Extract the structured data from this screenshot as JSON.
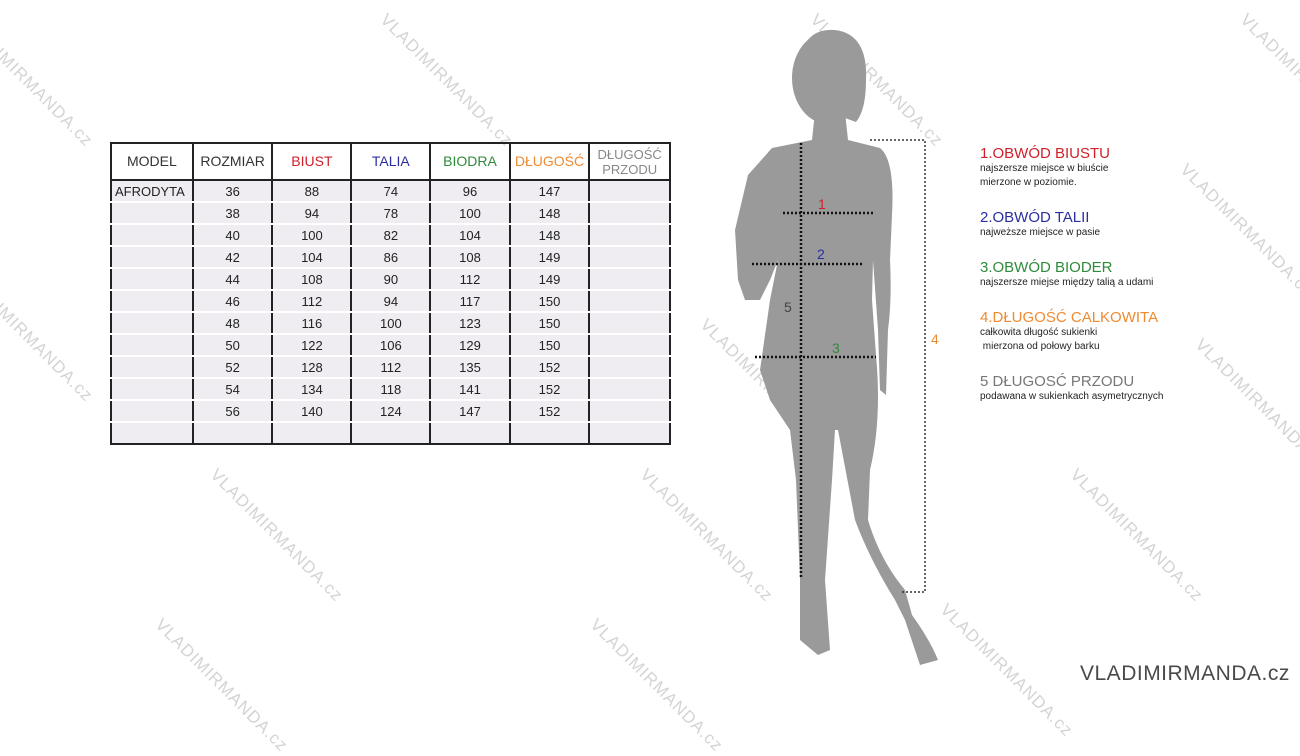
{
  "watermark": "VLADIMIRMANDA.cz",
  "table": {
    "headers": [
      {
        "label": "MODEL",
        "color": "#333333"
      },
      {
        "label": "ROZMIAR",
        "color": "#333333"
      },
      {
        "label": "BIUST",
        "color": "#d0202a"
      },
      {
        "label": "TALIA",
        "color": "#2b2f9e"
      },
      {
        "label": "BIODRA",
        "color": "#2e8b3a"
      },
      {
        "label": "DŁUGOŚĆ",
        "color": "#f08a30"
      },
      {
        "label": "DŁUGOŚĆ PRZODU",
        "color": "#888888"
      }
    ],
    "rows": [
      [
        "AFRODYTA",
        "36",
        "88",
        "74",
        "96",
        "147",
        ""
      ],
      [
        "",
        "38",
        "94",
        "78",
        "100",
        "148",
        ""
      ],
      [
        "",
        "40",
        "100",
        "82",
        "104",
        "148",
        ""
      ],
      [
        "",
        "42",
        "104",
        "86",
        "108",
        "149",
        ""
      ],
      [
        "",
        "44",
        "108",
        "90",
        "112",
        "149",
        ""
      ],
      [
        "",
        "46",
        "112",
        "94",
        "117",
        "150",
        ""
      ],
      [
        "",
        "48",
        "116",
        "100",
        "123",
        "150",
        ""
      ],
      [
        "",
        "50",
        "122",
        "106",
        "129",
        "150",
        ""
      ],
      [
        "",
        "52",
        "128",
        "112",
        "135",
        "152",
        ""
      ],
      [
        "",
        "54",
        "134",
        "118",
        "141",
        "152",
        ""
      ],
      [
        "",
        "56",
        "140",
        "124",
        "147",
        "152",
        ""
      ],
      [
        "",
        "",
        "",
        "",
        "",
        "",
        ""
      ]
    ]
  },
  "figure": {
    "markers": [
      {
        "label": "1",
        "color": "#d0202a"
      },
      {
        "label": "2",
        "color": "#2b2f9e"
      },
      {
        "label": "3",
        "color": "#2e8b3a"
      },
      {
        "label": "4",
        "color": "#f08a30"
      },
      {
        "label": "5",
        "color": "#444444"
      }
    ]
  },
  "legend": [
    {
      "title": "1.OBWÓD BIUSTU",
      "desc": [
        "najszersze miejsce w biuście",
        "mierzone w poziomie."
      ],
      "color": "#d0202a"
    },
    {
      "title": "2.OBWÓD TALII",
      "desc": [
        "najweższe miejsce w pasie"
      ],
      "color": "#2b2f9e"
    },
    {
      "title": "3.OBWÓD BIODER",
      "desc": [
        "najszersze miejse między talią a udami"
      ],
      "color": "#2e8b3a"
    },
    {
      "title": "4.DŁUGOŚĆ CALKOWITA",
      "desc": [
        "całkowita długość sukienki",
        " mierzona od połowy barku"
      ],
      "color": "#f08a30"
    },
    {
      "title": "5 DŁUGOSĆ PRZODU",
      "desc": [
        "podawana w sukienkach asymetrycznych"
      ],
      "color": "#777777"
    }
  ]
}
